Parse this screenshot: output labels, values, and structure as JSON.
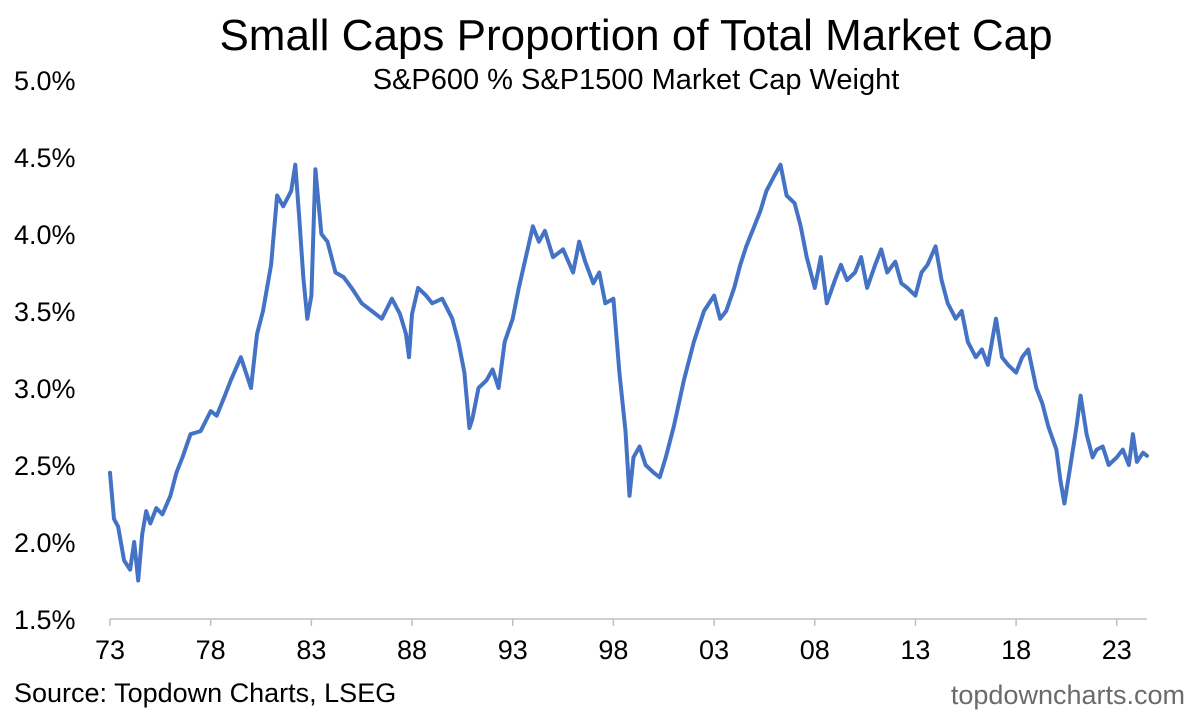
{
  "chart_data": {
    "type": "line",
    "title": "Small Caps Proportion of Total Market Cap",
    "subtitle": "S&P600 % S&P1500 Market Cap Weight",
    "xlabel": "",
    "ylabel": "",
    "ylim": [
      1.5,
      5.0
    ],
    "xlim": [
      1973,
      2024.5
    ],
    "y_ticks": [
      1.5,
      2.0,
      2.5,
      3.0,
      3.5,
      4.0,
      4.5,
      5.0
    ],
    "y_tick_labels": [
      "1.5%",
      "2.0%",
      "2.5%",
      "3.0%",
      "3.5%",
      "4.0%",
      "4.5%",
      "5.0%"
    ],
    "x_ticks": [
      1973,
      1978,
      1983,
      1988,
      1993,
      1998,
      2003,
      2008,
      2013,
      2018,
      2023
    ],
    "x_tick_labels": [
      "73",
      "78",
      "83",
      "88",
      "93",
      "98",
      "03",
      "08",
      "13",
      "18",
      "23"
    ],
    "grid": false,
    "legend": "none",
    "color": "#4472C4",
    "series": [
      {
        "name": "S&P600 % S&P1500 Market Cap Weight",
        "x": [
          1973.0,
          1973.2,
          1973.4,
          1973.7,
          1974.0,
          1974.2,
          1974.4,
          1974.6,
          1974.8,
          1975.0,
          1975.3,
          1975.6,
          1976.0,
          1976.3,
          1976.6,
          1977.0,
          1977.5,
          1978.0,
          1978.3,
          1978.7,
          1979.0,
          1979.5,
          1980.0,
          1980.3,
          1980.6,
          1981.0,
          1981.3,
          1981.6,
          1982.0,
          1982.2,
          1982.4,
          1982.6,
          1982.8,
          1983.0,
          1983.2,
          1983.5,
          1983.8,
          1984.2,
          1984.6,
          1985.0,
          1985.5,
          1986.0,
          1986.5,
          1987.0,
          1987.4,
          1987.7,
          1987.85,
          1988.0,
          1988.3,
          1988.7,
          1989.0,
          1989.5,
          1990.0,
          1990.3,
          1990.6,
          1990.85,
          1991.0,
          1991.3,
          1991.7,
          1992.0,
          1992.3,
          1992.6,
          1993.0,
          1993.3,
          1993.6,
          1994.0,
          1994.3,
          1994.6,
          1995.0,
          1995.5,
          1996.0,
          1996.3,
          1996.6,
          1997.0,
          1997.3,
          1997.6,
          1998.0,
          1998.3,
          1998.6,
          1998.8,
          1999.0,
          1999.3,
          1999.6,
          2000.0,
          2000.3,
          2000.6,
          2001.0,
          2001.5,
          2002.0,
          2002.5,
          2003.0,
          2003.3,
          2003.6,
          2004.0,
          2004.3,
          2004.6,
          2005.0,
          2005.3,
          2005.6,
          2006.0,
          2006.3,
          2006.6,
          2007.0,
          2007.3,
          2007.6,
          2008.0,
          2008.3,
          2008.6,
          2009.0,
          2009.3,
          2009.6,
          2010.0,
          2010.3,
          2010.6,
          2011.0,
          2011.3,
          2011.6,
          2012.0,
          2012.3,
          2012.6,
          2013.0,
          2013.3,
          2013.6,
          2014.0,
          2014.3,
          2014.6,
          2015.0,
          2015.3,
          2015.6,
          2016.0,
          2016.3,
          2016.6,
          2017.0,
          2017.3,
          2017.6,
          2018.0,
          2018.3,
          2018.6,
          2019.0,
          2019.3,
          2019.6,
          2020.0,
          2020.2,
          2020.4,
          2020.7,
          2021.0,
          2021.2,
          2021.5,
          2021.8,
          2022.0,
          2022.3,
          2022.6,
          2023.0,
          2023.3,
          2023.6,
          2023.8,
          2024.0,
          2024.3,
          2024.5
        ],
        "values": [
          2.45,
          2.15,
          2.1,
          1.88,
          1.82,
          2.0,
          1.75,
          2.05,
          2.2,
          2.12,
          2.22,
          2.18,
          2.3,
          2.45,
          2.55,
          2.7,
          2.72,
          2.85,
          2.82,
          2.95,
          3.05,
          3.2,
          3.0,
          3.35,
          3.5,
          3.8,
          4.25,
          4.18,
          4.28,
          4.45,
          4.1,
          3.72,
          3.45,
          3.6,
          4.42,
          4.0,
          3.95,
          3.75,
          3.72,
          3.65,
          3.55,
          3.5,
          3.45,
          3.58,
          3.48,
          3.35,
          3.2,
          3.48,
          3.65,
          3.6,
          3.55,
          3.58,
          3.45,
          3.3,
          3.1,
          2.74,
          2.8,
          3.0,
          3.05,
          3.12,
          3.0,
          3.3,
          3.45,
          3.65,
          3.82,
          4.05,
          3.95,
          4.02,
          3.85,
          3.9,
          3.75,
          3.95,
          3.82,
          3.68,
          3.75,
          3.55,
          3.58,
          3.1,
          2.72,
          2.3,
          2.55,
          2.62,
          2.5,
          2.45,
          2.42,
          2.55,
          2.75,
          3.05,
          3.3,
          3.5,
          3.6,
          3.45,
          3.5,
          3.65,
          3.8,
          3.92,
          4.05,
          4.15,
          4.28,
          4.38,
          4.45,
          4.25,
          4.2,
          4.05,
          3.85,
          3.65,
          3.85,
          3.55,
          3.7,
          3.8,
          3.7,
          3.75,
          3.85,
          3.65,
          3.8,
          3.9,
          3.75,
          3.82,
          3.68,
          3.65,
          3.6,
          3.75,
          3.8,
          3.92,
          3.7,
          3.55,
          3.45,
          3.5,
          3.3,
          3.2,
          3.25,
          3.15,
          3.45,
          3.2,
          3.15,
          3.1,
          3.2,
          3.25,
          3.0,
          2.9,
          2.75,
          2.6,
          2.4,
          2.25,
          2.5,
          2.75,
          2.95,
          2.7,
          2.55,
          2.6,
          2.62,
          2.5,
          2.55,
          2.6,
          2.5,
          2.7,
          2.52,
          2.58,
          2.56
        ]
      }
    ]
  },
  "footer": {
    "source": "Source: Topdown Charts, LSEG",
    "brand": "topdowncharts.com"
  }
}
